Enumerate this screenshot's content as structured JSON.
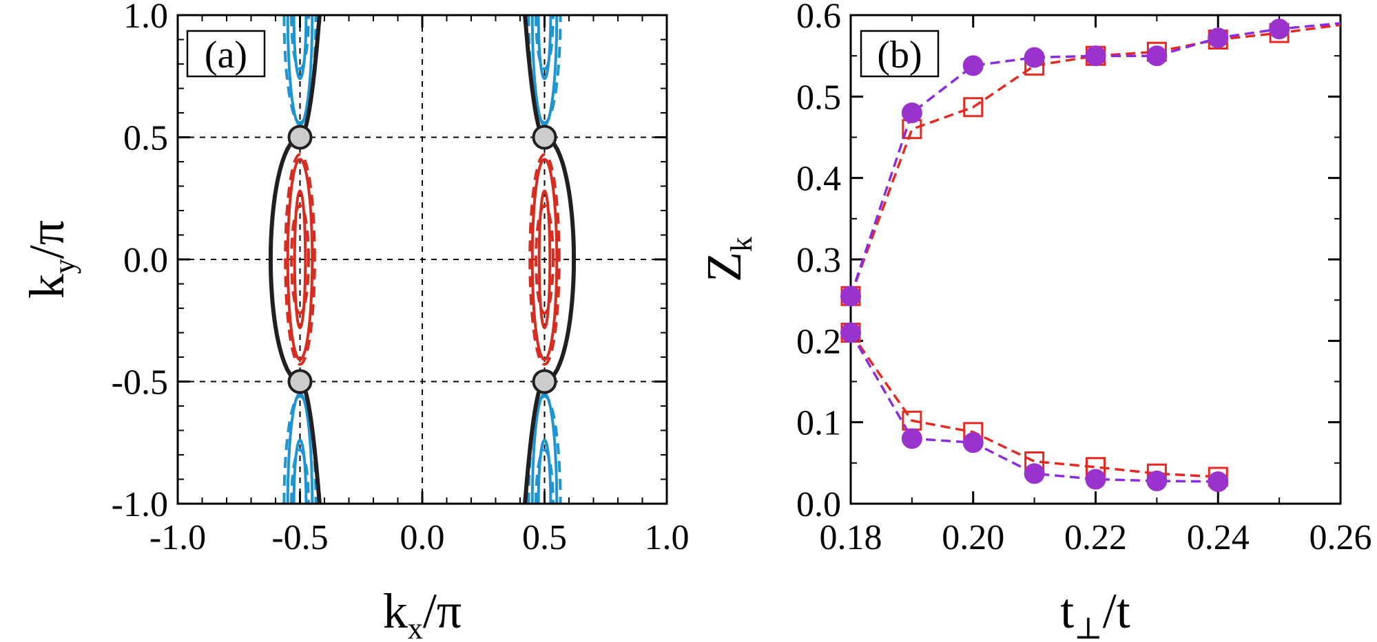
{
  "chart_data": [
    {
      "type": "contour",
      "panel_label": "(a)",
      "xlabel": {
        "main": "k",
        "sub": "x",
        "rest": "/π"
      },
      "ylabel": {
        "main": "k",
        "sub": "y",
        "rest": "/π"
      },
      "xlim": [
        -1.0,
        1.0
      ],
      "ylim": [
        -1.0,
        1.0
      ],
      "xticks": [
        "-1.0",
        "-0.5",
        "0.0",
        "0.5",
        "1.0"
      ],
      "yticks": [
        "-1.0",
        "-0.5",
        "0.0",
        "0.5",
        "1.0"
      ],
      "grid_lines": {
        "x": [
          -0.5,
          0.0,
          0.5
        ],
        "y": [
          -0.5,
          0.0,
          0.5
        ]
      },
      "colors": {
        "fermi": "#231f20",
        "red": "#d62d20",
        "blue": "#1f94d2",
        "node_fill": "#cccccc",
        "grid": "#000000"
      },
      "fermi_surface": {
        "center_abs": 0.5,
        "max_half_width": 0.12,
        "end_half_width": 0.08
      },
      "red_contours": [
        {
          "style": "solid",
          "half_width": 0.05,
          "y_extent": 0.41
        },
        {
          "style": "dashed",
          "half_width": 0.06,
          "y_extent": 0.43
        },
        {
          "style": "solid",
          "half_width": 0.022,
          "y_extent": 0.28
        },
        {
          "style": "dashed",
          "half_width": 0.035,
          "y_extent": 0.22
        }
      ],
      "blue_contours": [
        {
          "style": "solid",
          "half_width": 0.05,
          "y_from": 0.55
        },
        {
          "style": "dashed",
          "half_width": 0.065,
          "y_from": 0.56
        },
        {
          "style": "solid",
          "half_width": 0.025,
          "y_from": 0.74
        },
        {
          "style": "dashed",
          "half_width": 0.035,
          "y_from": 0.78
        }
      ],
      "nodes": [
        {
          "kx": -0.5,
          "ky": 0.5
        },
        {
          "kx": 0.5,
          "ky": 0.5
        },
        {
          "kx": -0.5,
          "ky": -0.5
        },
        {
          "kx": 0.5,
          "ky": -0.5
        }
      ]
    },
    {
      "type": "line",
      "panel_label": "(b)",
      "xlabel": {
        "main": "t",
        "sub": "⊥",
        "rest": "/t"
      },
      "ylabel": {
        "main": "Z",
        "sub": "k",
        "rest": ""
      },
      "xlim": [
        0.18,
        0.26
      ],
      "ylim": [
        0.0,
        0.6
      ],
      "xticks": [
        "0.18",
        "0.20",
        "0.22",
        "0.24",
        "0.26"
      ],
      "yticks": [
        "0.0",
        "0.1",
        "0.2",
        "0.3",
        "0.4",
        "0.5",
        "0.6"
      ],
      "colors": {
        "purple": "#8a2be2",
        "purple_marker": "#9a32cd",
        "red": "#e8271f"
      },
      "series": [
        {
          "name": "purple-upper",
          "color": "#8a2be2",
          "marker": "filled-circle",
          "x": [
            0.18,
            0.19,
            0.2,
            0.21,
            0.22,
            0.23,
            0.24,
            0.25,
            0.26
          ],
          "y": [
            0.255,
            0.48,
            0.538,
            0.548,
            0.55,
            0.55,
            0.572,
            0.583,
            0.59
          ],
          "marker_count": 8
        },
        {
          "name": "red-upper",
          "color": "#e8271f",
          "marker": "open-square",
          "x": [
            0.18,
            0.19,
            0.2,
            0.21,
            0.22,
            0.23,
            0.24,
            0.25,
            0.26
          ],
          "y": [
            0.255,
            0.46,
            0.487,
            0.538,
            0.55,
            0.555,
            0.57,
            0.578,
            0.588
          ],
          "marker_count": 8
        },
        {
          "name": "purple-lower",
          "color": "#8a2be2",
          "marker": "filled-circle",
          "x": [
            0.18,
            0.19,
            0.2,
            0.21,
            0.22,
            0.23,
            0.24
          ],
          "y": [
            0.21,
            0.08,
            0.075,
            0.037,
            0.03,
            0.028,
            0.027
          ],
          "marker_count": 7
        },
        {
          "name": "red-lower",
          "color": "#e8271f",
          "marker": "open-square",
          "x": [
            0.18,
            0.19,
            0.2,
            0.21,
            0.22,
            0.23,
            0.24
          ],
          "y": [
            0.21,
            0.102,
            0.088,
            0.052,
            0.045,
            0.037,
            0.033
          ],
          "marker_count": 7
        }
      ]
    }
  ]
}
